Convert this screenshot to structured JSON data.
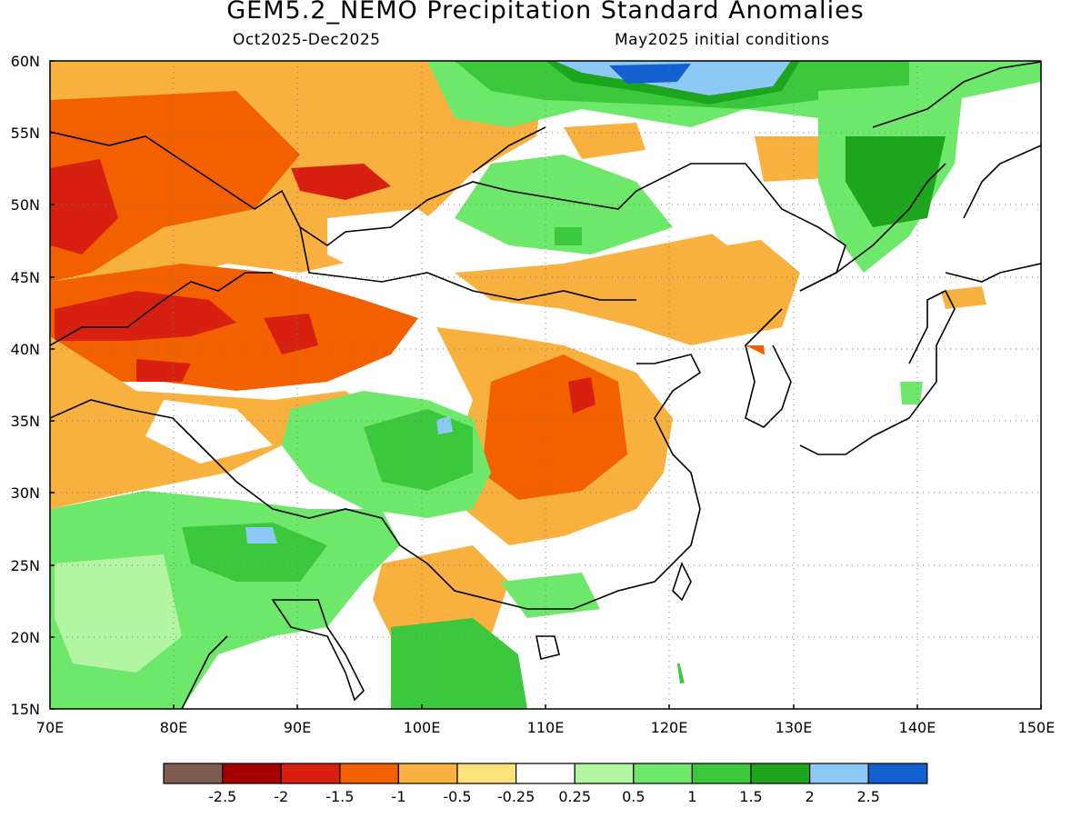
{
  "header": {
    "title": "GEM5.2_NEMO Precipitation Standard Anomalies",
    "period": "Oct2025-Dec2025",
    "init": "May2025 initial conditions"
  },
  "map": {
    "lat_labels": [
      "60N",
      "55N",
      "50N",
      "45N",
      "40N",
      "35N",
      "30N",
      "25N",
      "20N",
      "15N"
    ],
    "lon_labels": [
      "70E",
      "80E",
      "90E",
      "100E",
      "110E",
      "120E",
      "130E",
      "140E",
      "150E"
    ]
  },
  "colorbar": {
    "colors": [
      "#7f5a4f",
      "#a50000",
      "#d82010",
      "#f26000",
      "#f8b03e",
      "#fde27a",
      "#ffffff",
      "#b4f5a2",
      "#6ee86a",
      "#3cc83c",
      "#1da51d",
      "#8dc9f5",
      "#1560d0"
    ],
    "tick_labels": [
      "-2.5",
      "-2",
      "-1.5",
      "-1",
      "-0.5",
      "-0.25",
      "0.25",
      "0.5",
      "1",
      "1.5",
      "2",
      "2.5"
    ]
  }
}
